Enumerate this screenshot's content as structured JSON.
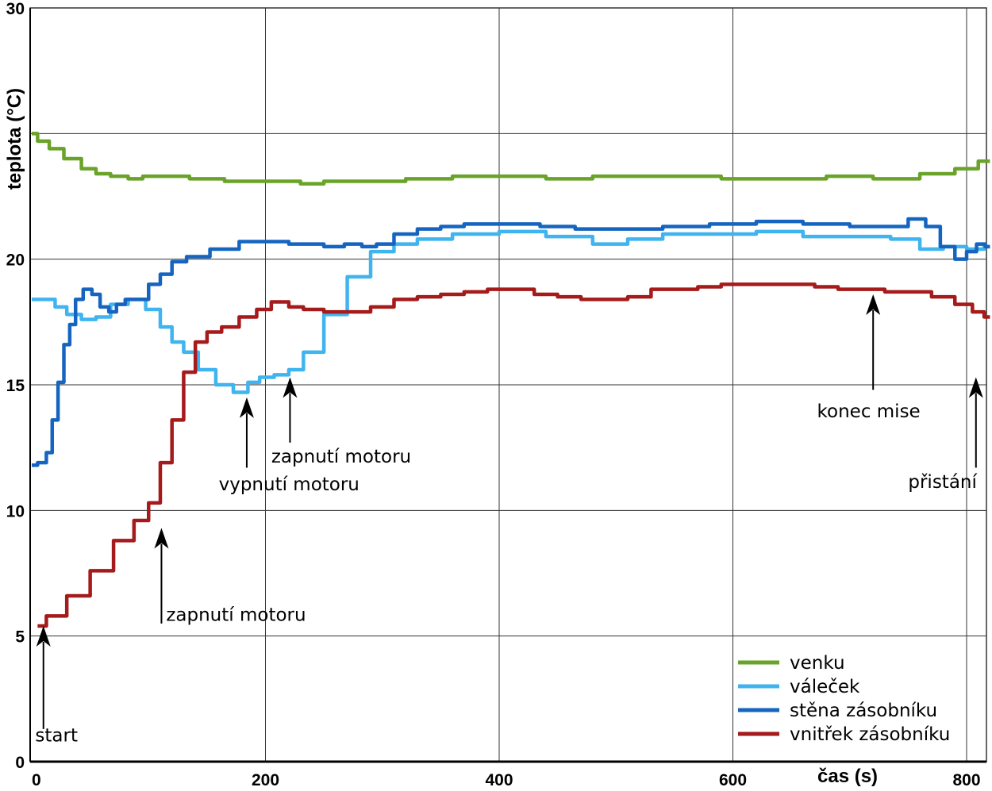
{
  "chart_data": {
    "type": "line",
    "xlabel": "čas (s)",
    "ylabel": "teplota (°C)",
    "xlim": [
      0,
      820
    ],
    "ylim": [
      0,
      30
    ],
    "x_ticks": [
      0,
      200,
      400,
      600,
      800
    ],
    "y_ticks": [
      0,
      5,
      10,
      15,
      20,
      30
    ],
    "grid": true,
    "legend_position": "bottom-right",
    "series": [
      {
        "name": "venku",
        "color": "#6aa329",
        "x": [
          0,
          10,
          20,
          35,
          50,
          60,
          75,
          90,
          100,
          120,
          150,
          180,
          200,
          220,
          240,
          260,
          300,
          340,
          380,
          420,
          460,
          500,
          540,
          580,
          600,
          640,
          660,
          700,
          740,
          780,
          800,
          820
        ],
        "y": [
          25.0,
          24.7,
          24.4,
          24.0,
          23.6,
          23.4,
          23.3,
          23.2,
          23.3,
          23.3,
          23.2,
          23.1,
          23.1,
          23.1,
          23.0,
          23.1,
          23.1,
          23.2,
          23.3,
          23.3,
          23.2,
          23.3,
          23.3,
          23.3,
          23.2,
          23.2,
          23.2,
          23.3,
          23.2,
          23.4,
          23.6,
          23.9
        ]
      },
      {
        "name": "váleček",
        "color": "#3fb4ef",
        "x": [
          0,
          15,
          25,
          35,
          50,
          60,
          75,
          90,
          105,
          115,
          125,
          135,
          150,
          165,
          180,
          190,
          200,
          215,
          225,
          240,
          260,
          280,
          300,
          320,
          340,
          380,
          420,
          460,
          500,
          520,
          560,
          600,
          640,
          680,
          720,
          750,
          770,
          790,
          810,
          820
        ],
        "y": [
          18.4,
          18.4,
          18.1,
          17.8,
          17.6,
          17.7,
          18.2,
          18.4,
          18.0,
          17.3,
          16.7,
          16.3,
          15.6,
          15.0,
          14.7,
          15.1,
          15.3,
          15.4,
          15.6,
          16.3,
          17.8,
          19.3,
          20.3,
          20.6,
          20.8,
          21.0,
          21.1,
          20.9,
          20.6,
          20.8,
          21.0,
          21.0,
          21.1,
          20.9,
          20.9,
          20.8,
          20.4,
          20.5,
          20.4,
          20.5
        ]
      },
      {
        "name": "stěna zásobníku",
        "color": "#1565c0",
        "x": [
          0,
          10,
          15,
          20,
          25,
          30,
          35,
          40,
          48,
          55,
          62,
          70,
          75,
          85,
          95,
          105,
          115,
          125,
          140,
          165,
          190,
          200,
          215,
          225,
          240,
          260,
          275,
          290,
          300,
          320,
          340,
          360,
          380,
          400,
          420,
          450,
          480,
          500,
          520,
          560,
          600,
          640,
          680,
          720,
          740,
          760,
          770,
          785,
          795,
          805,
          812,
          820
        ],
        "y": [
          11.8,
          11.9,
          12.3,
          13.6,
          15.1,
          16.6,
          17.4,
          18.4,
          18.8,
          18.6,
          18.1,
          17.9,
          18.2,
          18.4,
          18.4,
          19.0,
          19.4,
          19.9,
          20.1,
          20.4,
          20.7,
          20.7,
          20.7,
          20.6,
          20.6,
          20.5,
          20.6,
          20.5,
          20.6,
          21.0,
          21.2,
          21.3,
          21.4,
          21.4,
          21.4,
          21.3,
          21.2,
          21.2,
          21.2,
          21.3,
          21.4,
          21.5,
          21.4,
          21.3,
          21.3,
          21.6,
          21.3,
          20.5,
          20.0,
          20.3,
          20.6,
          20.5
        ]
      },
      {
        "name": "vnitřek zásobníku",
        "color": "#a51a1a",
        "x": [
          5,
          20,
          40,
          60,
          80,
          95,
          105,
          115,
          125,
          135,
          145,
          155,
          170,
          185,
          200,
          210,
          215,
          225,
          240,
          260,
          280,
          300,
          320,
          340,
          360,
          380,
          400,
          420,
          440,
          460,
          480,
          500,
          520,
          540,
          560,
          580,
          600,
          620,
          640,
          660,
          680,
          700,
          720,
          740,
          760,
          780,
          800,
          810,
          820
        ],
        "y": [
          5.4,
          5.8,
          6.6,
          7.6,
          8.8,
          9.6,
          10.3,
          11.9,
          13.6,
          15.5,
          16.7,
          17.1,
          17.3,
          17.7,
          18.0,
          18.3,
          18.3,
          18.1,
          18.0,
          17.9,
          17.9,
          18.1,
          18.4,
          18.5,
          18.6,
          18.7,
          18.8,
          18.8,
          18.6,
          18.5,
          18.4,
          18.4,
          18.5,
          18.8,
          18.8,
          18.9,
          19.0,
          19.0,
          19.0,
          19.0,
          18.9,
          18.8,
          18.8,
          18.7,
          18.7,
          18.5,
          18.2,
          17.9,
          17.7
        ]
      }
    ],
    "annotations": [
      {
        "text": "start",
        "arrow_x": 10,
        "arrow_tip_y": 5.4,
        "arrow_tail_y": 1.3,
        "text_x": 3,
        "text_y": 0.8
      },
      {
        "text": "zapnutí motoru",
        "arrow_x": 111,
        "arrow_tip_y": 9.3,
        "arrow_tail_y": 5.5,
        "text_x": 115,
        "text_y": 5.6
      },
      {
        "text": "vypnutí motoru",
        "arrow_x": 184,
        "arrow_tip_y": 14.5,
        "arrow_tail_y": 11.7,
        "text_x": 160,
        "text_y": 10.8
      },
      {
        "text": "zapnutí motoru",
        "arrow_x": 221,
        "arrow_tip_y": 15.3,
        "arrow_tail_y": 12.7,
        "text_x": 205,
        "text_y": 11.9
      },
      {
        "text": "konec mise",
        "arrow_x": 720,
        "arrow_tip_y": 18.6,
        "arrow_tail_y": 14.8,
        "text_x": 672,
        "text_y": 13.7
      },
      {
        "text": "přistání",
        "arrow_x": 808,
        "arrow_tip_y": 15.3,
        "arrow_tail_y": 11.7,
        "text_x": 750,
        "text_y": 10.9
      }
    ]
  }
}
